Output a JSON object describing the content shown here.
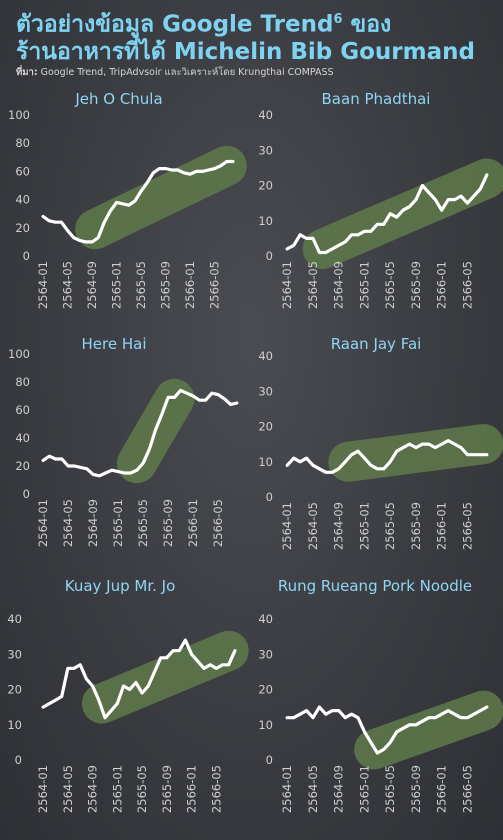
{
  "header": {
    "title_line1": "ตัวอย่างข้อมูล Google Trend",
    "title_sup": "6",
    "title_line1_end": " ของ",
    "title_line2": "ร้านอาหารที่ได้ Michelin Bib Gourmand",
    "source_label": "ที่มา:",
    "source_text": "Google Trend, TripAdvsoir และวิเคราะห์โดย Krungthai COMPASS"
  },
  "colors": {
    "line": "#ffffff",
    "highlight": "#5f7a4a",
    "title": "#8fd6f3",
    "tick": "#cfcfcf"
  },
  "chart_data": [
    {
      "type": "line",
      "title": "Jeh O Chula",
      "ylim": [
        0,
        100
      ],
      "yticks": [
        0,
        20,
        40,
        60,
        80,
        100
      ],
      "xticks": [
        "2564-01",
        "2564-05",
        "2564-09",
        "2565-01",
        "2565-05",
        "2565-09",
        "2566-01",
        "2566-05"
      ],
      "xrange": [
        0,
        32
      ],
      "values": [
        28,
        25,
        24,
        24,
        18,
        13,
        11,
        10,
        10,
        13,
        24,
        32,
        38,
        37,
        36,
        39,
        46,
        52,
        59,
        62,
        62,
        61,
        61,
        59,
        58,
        60,
        60,
        61,
        62,
        64,
        67,
        67
      ],
      "highlight": {
        "x": [
          9.0,
          30.5
        ],
        "y": [
          19,
          64
        ]
      }
    },
    {
      "type": "line",
      "title": "Baan Phadthai",
      "ylim": [
        0,
        40
      ],
      "yticks": [
        0,
        10,
        20,
        30,
        40
      ],
      "xticks": [
        "2564-01",
        "2564-05",
        "2564-09",
        "2565-01",
        "2565-05",
        "2565-09",
        "2566-01",
        "2566-05"
      ],
      "xrange": [
        0,
        32
      ],
      "values": [
        2,
        3,
        6,
        5,
        5,
        1,
        1,
        2,
        3,
        4,
        6,
        6,
        7,
        7,
        9,
        9,
        12,
        11,
        13,
        14,
        16,
        20,
        18,
        16,
        13,
        16,
        16,
        17,
        15,
        17,
        19,
        23
      ],
      "highlight": {
        "x": [
          6.0,
          31.5
        ],
        "y": [
          2,
          22
        ]
      }
    },
    {
      "type": "line",
      "title": "Here Hai",
      "ylim": [
        0,
        100
      ],
      "yticks": [
        0,
        20,
        40,
        60,
        80,
        100
      ],
      "xticks": [
        "2564-01",
        "2564-05",
        "2564-09",
        "2565-01",
        "2565-05",
        "2565-09",
        "2566-01",
        "2566-05"
      ],
      "xrange": [
        0,
        32
      ],
      "values": [
        24,
        27,
        25,
        25,
        20,
        20,
        19,
        18,
        14,
        13,
        15,
        17,
        16,
        15,
        15,
        17,
        22,
        32,
        46,
        57,
        69,
        69,
        74,
        72,
        70,
        67,
        67,
        72,
        71,
        68,
        64,
        65
      ],
      "highlight": {
        "x": [
          15.5,
          21.5
        ],
        "y": [
          22,
          68
        ]
      }
    },
    {
      "type": "line",
      "title": "Raan Jay Fai",
      "ylim": [
        0,
        40
      ],
      "yticks": [
        0,
        10,
        20,
        30,
        40
      ],
      "xticks": [
        "2564-01",
        "2564-05",
        "2564-09",
        "2565-01",
        "2565-05",
        "2565-09",
        "2566-01",
        "2566-05"
      ],
      "xrange": [
        0,
        32
      ],
      "values": [
        9,
        11,
        10,
        11,
        9,
        8,
        7,
        7,
        8,
        10,
        12,
        13,
        11,
        9,
        8,
        8,
        10,
        13,
        14,
        15,
        14,
        15,
        15,
        14,
        15,
        16,
        15,
        14,
        12,
        12,
        12,
        12
      ],
      "highlight": {
        "x": [
          10.0,
          31.0
        ],
        "y": [
          10,
          15
        ]
      }
    },
    {
      "type": "line",
      "title": "Kuay Jup Mr. Jo",
      "ylim": [
        0,
        40
      ],
      "yticks": [
        0,
        10,
        20,
        30,
        40
      ],
      "xticks": [
        "2564-01",
        "2564-05",
        "2564-09",
        "2565-01",
        "2565-05",
        "2565-09",
        "2566-01",
        "2566-05"
      ],
      "xrange": [
        0,
        32
      ],
      "values": [
        15,
        16,
        17,
        18,
        26,
        26,
        27,
        23,
        21,
        17,
        12,
        14,
        16,
        21,
        20,
        22,
        19,
        21,
        25,
        29,
        29,
        31,
        31,
        34,
        30,
        28,
        26,
        27,
        26,
        27,
        27,
        31
      ],
      "highlight": {
        "x": [
          10.0,
          30.5
        ],
        "y": [
          16,
          31
        ]
      }
    },
    {
      "type": "line",
      "title": "Rung Rueang Pork Noodle",
      "ylim": [
        0,
        40
      ],
      "yticks": [
        0,
        10,
        20,
        30,
        40
      ],
      "xticks": [
        "2564-01",
        "2564-05",
        "2564-09",
        "2565-01",
        "2565-05",
        "2565-09",
        "2566-01",
        "2566-05"
      ],
      "xrange": [
        0,
        32
      ],
      "values": [
        12,
        12,
        13,
        14,
        12,
        15,
        13,
        14,
        14,
        12,
        13,
        12,
        8,
        5,
        2,
        3,
        5,
        8,
        9,
        10,
        10,
        11,
        12,
        12,
        13,
        14,
        13,
        12,
        12,
        13,
        14,
        15
      ],
      "highlight": {
        "x": [
          14.0,
          31.0
        ],
        "y": [
          3,
          14
        ]
      }
    }
  ]
}
